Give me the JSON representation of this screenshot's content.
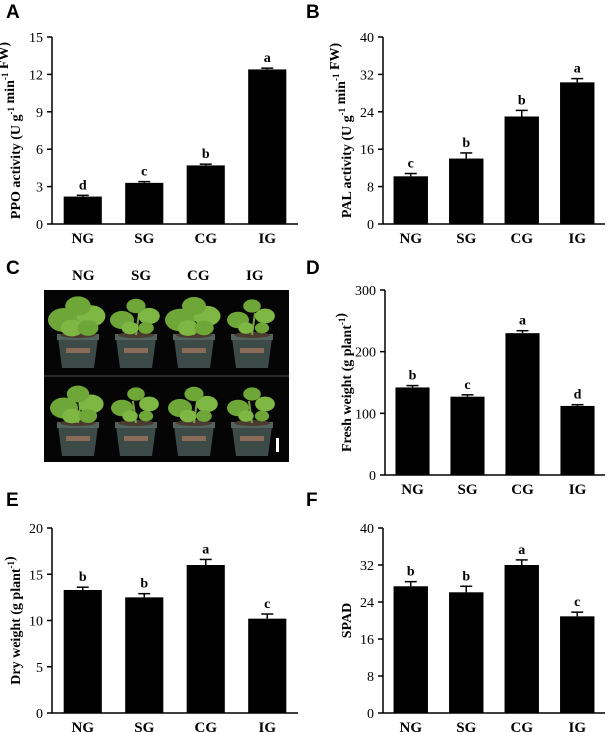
{
  "panels": {
    "A": "A",
    "B": "B",
    "C": "C",
    "D": "D",
    "E": "E",
    "F": "F"
  },
  "photo": {
    "labels": [
      "NG",
      "SG",
      "CG",
      "IG"
    ]
  },
  "colors": {
    "bar": "#000000",
    "axis": "#000000",
    "pot": "#3c4b48",
    "leaf": "#6fa638",
    "soil": "#4a3b2f"
  },
  "chart_data": [
    {
      "id": "A",
      "type": "bar",
      "categories": [
        "NG",
        "SG",
        "CG",
        "IG"
      ],
      "values": [
        2.2,
        3.3,
        4.7,
        12.4
      ],
      "errors": [
        0.1,
        0.1,
        0.1,
        0.1
      ],
      "letters": [
        "d",
        "c",
        "b",
        "a"
      ],
      "ylabel_prefix": "PPO activity (U g",
      "ylabel_sup1": "-1",
      "ylabel_mid": " min",
      "ylabel_sup2": "-1",
      "ylabel_suffix": " FW)",
      "ylim": [
        0,
        15
      ],
      "yticks": [
        0,
        3,
        6,
        9,
        12,
        15
      ]
    },
    {
      "id": "B",
      "type": "bar",
      "categories": [
        "NG",
        "SG",
        "CG",
        "IG"
      ],
      "values": [
        10.2,
        14.0,
        23.0,
        30.3
      ],
      "errors": [
        0.6,
        1.2,
        1.3,
        0.8
      ],
      "letters": [
        "c",
        "b",
        "b",
        "a"
      ],
      "ylabel_prefix": "PAL activity (U g",
      "ylabel_sup1": "-1",
      "ylabel_mid": " min",
      "ylabel_sup2": "-1",
      "ylabel_suffix": " FW)",
      "ylim": [
        0,
        40
      ],
      "yticks": [
        0,
        8,
        16,
        24,
        32,
        40
      ]
    },
    {
      "id": "D",
      "type": "bar",
      "categories": [
        "NG",
        "SG",
        "CG",
        "IG"
      ],
      "values": [
        142,
        127,
        230,
        112
      ],
      "errors": [
        3,
        3,
        4,
        2
      ],
      "letters": [
        "b",
        "c",
        "a",
        "d"
      ],
      "ylabel_prefix": "Fresh weight (g plant",
      "ylabel_sup1": "-1",
      "ylabel_mid": "",
      "ylabel_sup2": "",
      "ylabel_suffix": ")",
      "ylim": [
        0,
        300
      ],
      "yticks": [
        0,
        100,
        200,
        300
      ]
    },
    {
      "id": "E",
      "type": "bar",
      "categories": [
        "NG",
        "SG",
        "CG",
        "IG"
      ],
      "values": [
        13.3,
        12.5,
        16.0,
        10.2
      ],
      "errors": [
        0.3,
        0.4,
        0.6,
        0.5
      ],
      "letters": [
        "b",
        "b",
        "a",
        "c"
      ],
      "ylabel_prefix": "Dry weight (g plant",
      "ylabel_sup1": "-1",
      "ylabel_mid": "",
      "ylabel_sup2": "",
      "ylabel_suffix": ")",
      "ylim": [
        0,
        20
      ],
      "yticks": [
        0,
        5,
        10,
        15,
        20
      ]
    },
    {
      "id": "F",
      "type": "bar",
      "categories": [
        "NG",
        "SG",
        "CG",
        "IG"
      ],
      "values": [
        27.4,
        26.1,
        32.0,
        20.9
      ],
      "errors": [
        1.0,
        1.3,
        1.1,
        0.9
      ],
      "letters": [
        "b",
        "b",
        "a",
        "c"
      ],
      "ylabel_prefix": "SPAD",
      "ylabel_sup1": "",
      "ylabel_mid": "",
      "ylabel_sup2": "",
      "ylabel_suffix": "",
      "ylim": [
        0,
        40
      ],
      "yticks": [
        0,
        8,
        16,
        24,
        32,
        40
      ]
    }
  ]
}
